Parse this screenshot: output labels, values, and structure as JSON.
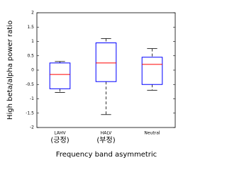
{
  "chart_data": {
    "type": "box",
    "x_label": "Frequency band asymmetric",
    "y_label": "High beta/alpha power ratio",
    "categories": [
      "LAHV",
      "HALV",
      "Neutral"
    ],
    "category_notes": [
      "(긍정)",
      "(부정)",
      null
    ],
    "series": [
      {
        "name": null,
        "color": "#0000ff",
        "median_color": "#ff0000",
        "min": [
          -0.78,
          -1.55,
          -0.7
        ],
        "q1": [
          -0.65,
          -0.4,
          -0.5
        ],
        "median": [
          -0.15,
          0.25,
          0.2
        ],
        "q3": [
          0.25,
          0.95,
          0.45
        ],
        "max": [
          0.3,
          1.1,
          0.75
        ]
      }
    ],
    "ylim": [
      -2,
      2
    ],
    "yticks": [
      -2,
      -1.5,
      -1,
      -0.5,
      0,
      0.5,
      1,
      1.5,
      2
    ]
  }
}
